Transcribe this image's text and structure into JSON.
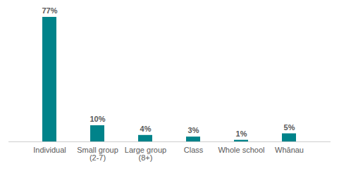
{
  "chart_data": {
    "type": "bar",
    "categories": [
      "Individual",
      "Small group (2-7)",
      "Large group (8+)",
      "Class",
      "Whole school",
      "Whānau"
    ],
    "values": [
      77,
      10,
      4,
      3,
      1,
      5
    ],
    "value_labels": [
      "77%",
      "10%",
      "4%",
      "3%",
      "1%",
      "5%"
    ],
    "color": "#00838a",
    "data_labels": true,
    "tick_labels": "x",
    "grid": false
  }
}
